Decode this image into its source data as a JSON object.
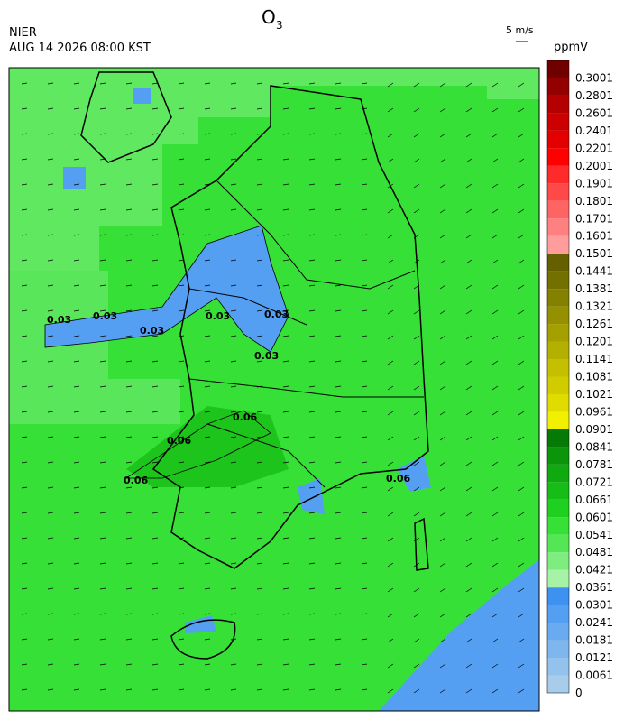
{
  "header": {
    "title": "O",
    "title_subscript": "3",
    "agency": "NIER",
    "time": "AUG 14 2026 08:00 KST",
    "wind_scale": "5 m/s",
    "unit": "ppmV"
  },
  "colorbar": {
    "levels": [
      "0",
      "0.0061",
      "0.0121",
      "0.0181",
      "0.0241",
      "0.0301",
      "0.0361",
      "0.0421",
      "0.0481",
      "0.0541",
      "0.0601",
      "0.0661",
      "0.0721",
      "0.0781",
      "0.0841",
      "0.0901",
      "0.0961",
      "0.1021",
      "0.1081",
      "0.1141",
      "0.1201",
      "0.1261",
      "0.1321",
      "0.1381",
      "0.1441",
      "0.1501",
      "0.1601",
      "0.1701",
      "0.1801",
      "0.1901",
      "0.2001",
      "0.2201",
      "0.2401",
      "0.2601",
      "0.2801",
      "0.3001"
    ],
    "colors": [
      "#a8cdea",
      "#93c2ec",
      "#7eb6ee",
      "#69abf0",
      "#559ff2",
      "#3d91f0",
      "#a6f2a6",
      "#7eec7e",
      "#55e655",
      "#36e036",
      "#20d020",
      "#16bd16",
      "#10aa10",
      "#0a950a",
      "#057a05",
      "#f0f000",
      "#e0dc00",
      "#d0cc00",
      "#c4c000",
      "#b4b000",
      "#a4a000",
      "#949000",
      "#848000",
      "#747000",
      "#646000",
      "#ff9c9c",
      "#ff8080",
      "#ff6464",
      "#ff4848",
      "#ff2a2a",
      "#ff0000",
      "#e40000",
      "#cc0000",
      "#b40000",
      "#940000",
      "#700000"
    ]
  },
  "contour_labels": [
    "0.03",
    "0.03",
    "0.03",
    "0.03",
    "0.03",
    "0.03",
    "0.06",
    "0.06",
    "0.06",
    "0.06"
  ]
}
